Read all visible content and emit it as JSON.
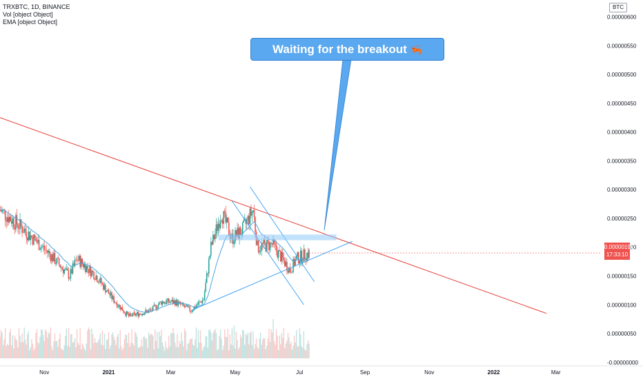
{
  "legend": {
    "symbol": "TRXBTC, 1D, BINANCE",
    "vol": "Vol [object Object]",
    "ema": "EMA [object Object]"
  },
  "callout": {
    "text": "Waiting for the breakout",
    "emoji": "🦐"
  },
  "currency_badge": "BTC",
  "price_tag": {
    "price": "0.00000190",
    "countdown": "17:33:10"
  },
  "colors": {
    "up": "#26a69a",
    "down": "#ef5350",
    "ema": "#4aa3df",
    "trendline": "#e53935",
    "channel": "#42a5f5"
  },
  "chart_data": {
    "type": "candlestick",
    "y_ticks": [
      "0.00000600",
      "0.00000550",
      "0.00000500",
      "0.00000450",
      "0.00000400",
      "0.00000350",
      "0.00000300",
      "0.00000250",
      "0.00000200",
      "0.00000150",
      "0.00000100",
      "0.00000050",
      "-0.00000000"
    ],
    "ylim": [
      -5e-08,
      6.15e-06
    ],
    "x_ticks": [
      "Nov",
      "2021",
      "Mar",
      "May",
      "Jul",
      "Sep",
      "Nov",
      "2022",
      "Mar"
    ],
    "price_path": [
      [
        "2020-09-20",
        2.65e-06
      ],
      [
        "2020-10-10",
        2.35e-06
      ],
      [
        "2020-11-05",
        1.9e-06
      ],
      [
        "2020-11-25",
        1.5e-06
      ],
      [
        "2020-12-02",
        1.8e-06
      ],
      [
        "2020-12-20",
        1.5e-06
      ],
      [
        "2021-01-05",
        1.1e-06
      ],
      [
        "2021-01-20",
        8e-07
      ],
      [
        "2021-02-10",
        9e-07
      ],
      [
        "2021-02-20",
        1.05e-06
      ],
      [
        "2021-03-05",
        1.05e-06
      ],
      [
        "2021-03-20",
        9e-07
      ],
      [
        "2021-04-01",
        1.1e-06
      ],
      [
        "2021-04-08",
        2e-06
      ],
      [
        "2021-04-18",
        2.6e-06
      ],
      [
        "2021-04-28",
        2.15e-06
      ],
      [
        "2021-05-08",
        2.3e-06
      ],
      [
        "2021-05-18",
        2.65e-06
      ],
      [
        "2021-05-22",
        2e-06
      ],
      [
        "2021-06-05",
        2.05e-06
      ],
      [
        "2021-06-22",
        1.6e-06
      ],
      [
        "2021-06-28",
        1.8e-06
      ],
      [
        "2021-07-10",
        1.9e-06
      ]
    ],
    "annotations": {
      "resistance_trendline": {
        "from": [
          "2020-09-20",
          4.25e-06
        ],
        "to": [
          "2022-02-20",
          8.5e-07
        ]
      },
      "support_line": {
        "from": [
          "2021-03-20",
          9e-07
        ],
        "to": [
          "2021-08-20",
          2.1e-06
        ]
      },
      "channel_upper": {
        "from": [
          "2021-05-15",
          3.05e-06
        ],
        "to": [
          "2021-07-15",
          1.4e-06
        ]
      },
      "channel_lower": {
        "from": [
          "2021-04-28",
          2.8e-06
        ],
        "to": [
          "2021-07-05",
          1e-06
        ]
      },
      "resistance_zone": {
        "x": [
          "2021-04-15",
          "2021-08-05"
        ],
        "y": [
          2.12e-06,
          2.22e-06
        ]
      }
    }
  }
}
